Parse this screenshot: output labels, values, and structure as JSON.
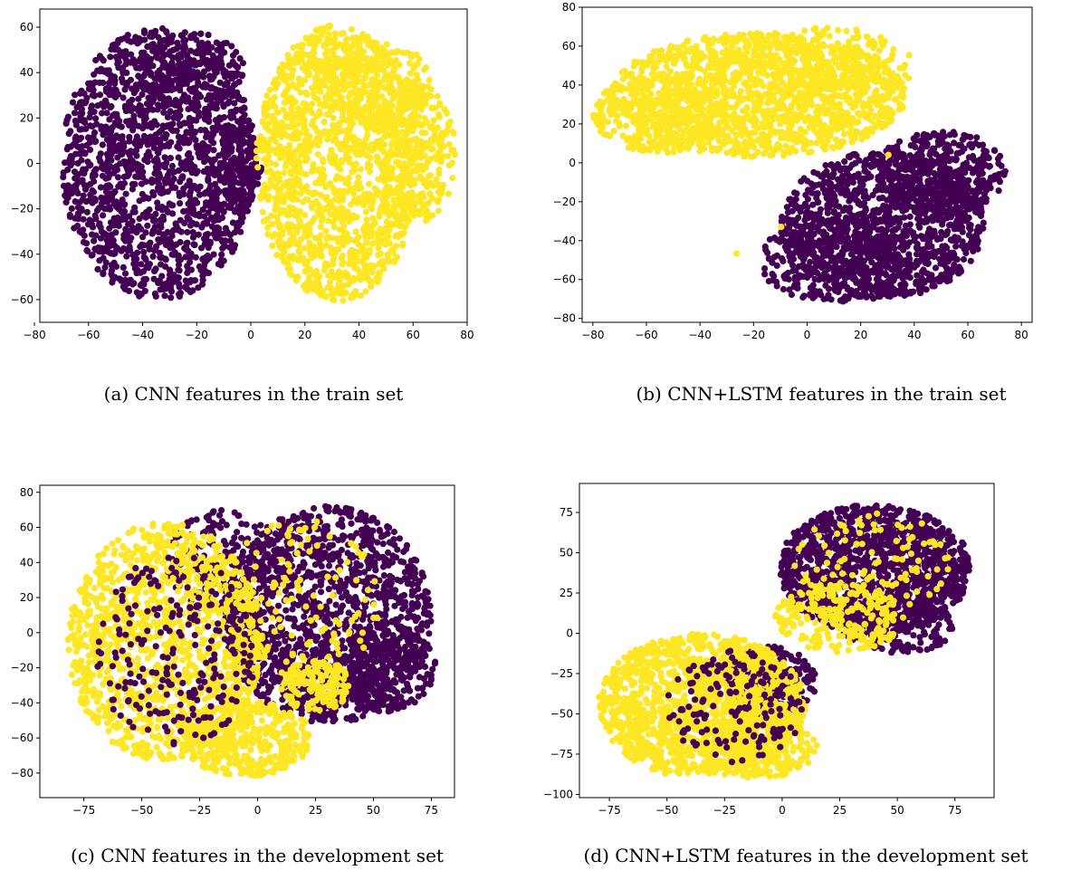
{
  "colors": {
    "class_a": "#440154",
    "class_b": "#fde725"
  },
  "chart_data": [
    {
      "type": "scatter",
      "caption": "(a) CNN features in the train set",
      "xlim": [
        -78,
        80
      ],
      "ylim": [
        -70,
        68
      ],
      "xticks": [
        -80,
        -60,
        -40,
        -20,
        0,
        20,
        40,
        60,
        80
      ],
      "yticks": [
        -60,
        -40,
        -20,
        0,
        20,
        40,
        60
      ],
      "grid": false,
      "series": [
        {
          "color": "#440154",
          "regions": [
            {
              "cx": -34,
              "cy": 0,
              "rx": 36,
              "ry": 60,
              "n": 1600
            },
            {
              "cx": -22,
              "cy": 40,
              "rx": 20,
              "ry": 18,
              "n": 200
            },
            {
              "cx": -4,
              "cy": 0,
              "rx": 8,
              "ry": 20,
              "n": 120
            }
          ]
        },
        {
          "color": "#fde725",
          "regions": [
            {
              "cx": 32,
              "cy": 0,
              "rx": 30,
              "ry": 61,
              "n": 1500
            },
            {
              "cx": 62,
              "cy": 5,
              "rx": 14,
              "ry": 32,
              "n": 300
            },
            {
              "cx": 45,
              "cy": 35,
              "rx": 22,
              "ry": 20,
              "n": 200
            }
          ]
        }
      ]
    },
    {
      "type": "scatter",
      "caption": "(b) CNN+LSTM features in the train set",
      "xlim": [
        -84,
        84
      ],
      "ylim": [
        -82,
        80
      ],
      "xticks": [
        -80,
        -60,
        -40,
        -20,
        0,
        20,
        40,
        60,
        80
      ],
      "yticks": [
        -80,
        -60,
        -40,
        -20,
        0,
        20,
        40,
        60,
        80
      ],
      "grid": false,
      "series": [
        {
          "color": "#fde725",
          "regions": [
            {
              "cx": -18,
              "cy": 35,
              "rx": 55,
              "ry": 32,
              "n": 1500
            },
            {
              "cx": -55,
              "cy": 25,
              "rx": 25,
              "ry": 20,
              "n": 300
            },
            {
              "cx": 10,
              "cy": 50,
              "rx": 30,
              "ry": 20,
              "n": 200
            }
          ]
        },
        {
          "color": "#440154",
          "regions": [
            {
              "cx": 28,
              "cy": -32,
              "rx": 38,
              "ry": 38,
              "n": 1200
            },
            {
              "cx": 50,
              "cy": -5,
              "rx": 24,
              "ry": 22,
              "n": 400
            },
            {
              "cx": 10,
              "cy": -50,
              "rx": 28,
              "ry": 22,
              "n": 300
            }
          ]
        },
        {
          "color": "#fde725",
          "regions": [
            {
              "cx": -9,
              "cy": -33,
              "rx": 1,
              "ry": 1,
              "n": 1
            },
            {
              "cx": -27,
              "cy": -46,
              "rx": 1,
              "ry": 1,
              "n": 1
            },
            {
              "cx": 30,
              "cy": 4,
              "rx": 1,
              "ry": 1,
              "n": 1
            }
          ]
        }
      ]
    },
    {
      "type": "scatter",
      "caption": "(c) CNN features in the development set",
      "xlim": [
        -94,
        85
      ],
      "ylim": [
        -94,
        84
      ],
      "xticks": [
        -75,
        -50,
        -25,
        0,
        25,
        50,
        75
      ],
      "yticks": [
        -80,
        -60,
        -40,
        -20,
        0,
        20,
        40,
        60,
        80
      ],
      "grid": false,
      "series": [
        {
          "color": "#440154",
          "regions": [
            {
              "cx": 30,
              "cy": 10,
              "rx": 45,
              "ry": 62,
              "n": 1400
            },
            {
              "cx": 55,
              "cy": -20,
              "rx": 22,
              "ry": 25,
              "n": 300
            },
            {
              "cx": -15,
              "cy": 40,
              "rx": 25,
              "ry": 30,
              "n": 200
            }
          ]
        },
        {
          "color": "#fde725",
          "regions": [
            {
              "cx": -40,
              "cy": -5,
              "rx": 42,
              "ry": 68,
              "n": 1300
            },
            {
              "cx": -5,
              "cy": -60,
              "rx": 28,
              "ry": 22,
              "n": 400
            },
            {
              "cx": 25,
              "cy": -30,
              "rx": 15,
              "ry": 15,
              "n": 150
            },
            {
              "cx": 20,
              "cy": 20,
              "rx": 35,
              "ry": 45,
              "n": 120
            }
          ]
        },
        {
          "color": "#440154",
          "regions": [
            {
              "cx": -35,
              "cy": -10,
              "rx": 35,
              "ry": 55,
              "n": 220
            }
          ]
        }
      ]
    },
    {
      "type": "scatter",
      "caption": "(d) CNN+LSTM features in the development set",
      "xlim": [
        -88,
        92
      ],
      "ylim": [
        -102,
        93
      ],
      "xticks": [
        -75,
        -50,
        -25,
        0,
        25,
        50,
        75
      ],
      "yticks": [
        -100,
        -75,
        -50,
        -25,
        0,
        25,
        50,
        75
      ],
      "grid": false,
      "series": [
        {
          "color": "#440154",
          "regions": [
            {
              "cx": 40,
              "cy": 40,
              "rx": 42,
              "ry": 40,
              "n": 1300
            },
            {
              "cx": 50,
              "cy": 5,
              "rx": 25,
              "ry": 18,
              "n": 200
            },
            {
              "cx": -5,
              "cy": -30,
              "rx": 20,
              "ry": 22,
              "n": 250
            }
          ]
        },
        {
          "color": "#fde725",
          "regions": [
            {
              "cx": -35,
              "cy": -45,
              "rx": 45,
              "ry": 45,
              "n": 1400
            },
            {
              "cx": -10,
              "cy": -70,
              "rx": 25,
              "ry": 20,
              "n": 300
            },
            {
              "cx": 25,
              "cy": 10,
              "rx": 28,
              "ry": 22,
              "n": 250
            },
            {
              "cx": 40,
              "cy": 45,
              "rx": 35,
              "ry": 30,
              "n": 100
            }
          ]
        },
        {
          "color": "#440154",
          "regions": [
            {
              "cx": -20,
              "cy": -45,
              "rx": 30,
              "ry": 35,
              "n": 150
            }
          ]
        }
      ]
    }
  ]
}
